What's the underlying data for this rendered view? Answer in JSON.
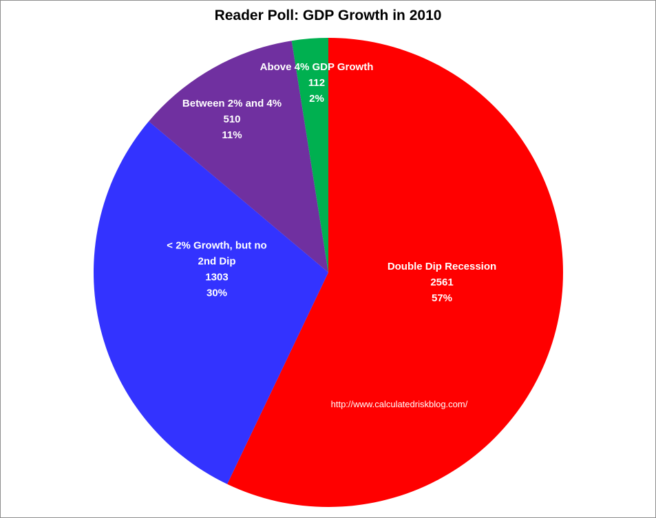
{
  "chart_data": {
    "type": "pie",
    "title": "Reader Poll: GDP Growth in 2010",
    "slices": [
      {
        "label_lines": [
          "Double Dip Recession"
        ],
        "value": 2561,
        "percent": "57%",
        "color": "#ff0000"
      },
      {
        "label_lines": [
          "< 2% Growth, but no",
          "2nd Dip"
        ],
        "value": 1303,
        "percent": "30%",
        "color": "#3333ff"
      },
      {
        "label_lines": [
          "Between 2% and 4%"
        ],
        "value": 510,
        "percent": "11%",
        "color": "#7030a0"
      },
      {
        "label_lines": [
          "Above 4% GDP Growth"
        ],
        "value": 112,
        "percent": "2%",
        "color": "#00b050"
      }
    ],
    "start": "12 o'clock",
    "direction": "clockwise",
    "legend": "none",
    "watermark": "http://www.calculatedriskblog.com/"
  }
}
